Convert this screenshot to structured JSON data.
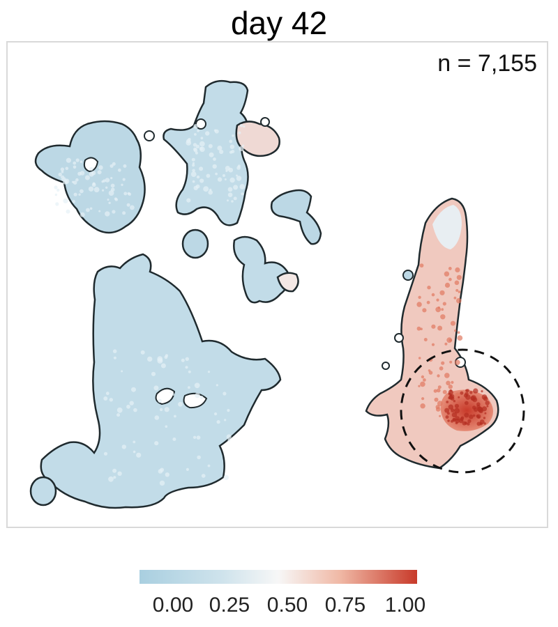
{
  "chart_data": {
    "type": "scatter",
    "title": "day 42",
    "annotation": "n = 7,155",
    "grid": false,
    "axes_visible": false,
    "color_scale": {
      "label": "",
      "min": 0.0,
      "max": 1.0,
      "colors": [
        "#a9cfe0",
        "#d6e8f0",
        "#f7f7f7",
        "#f0b9a6",
        "#c83a2a"
      ],
      "ticks": [
        "0.00",
        "0.25",
        "0.50",
        "0.75",
        "1.00"
      ],
      "legend_position": "bottom"
    },
    "clusters": [
      {
        "name": "left-top",
        "level": 0.08
      },
      {
        "name": "middle-top",
        "level": 0.12
      },
      {
        "name": "middle-top-right",
        "level": 0.6
      },
      {
        "name": "middle-small-right",
        "level": 0.1
      },
      {
        "name": "middle-lower",
        "level": 0.1
      },
      {
        "name": "large-left",
        "level": 0.05
      },
      {
        "name": "right",
        "level": 0.75
      }
    ],
    "highlight": "dashed-circle-right-cluster-bottom"
  }
}
